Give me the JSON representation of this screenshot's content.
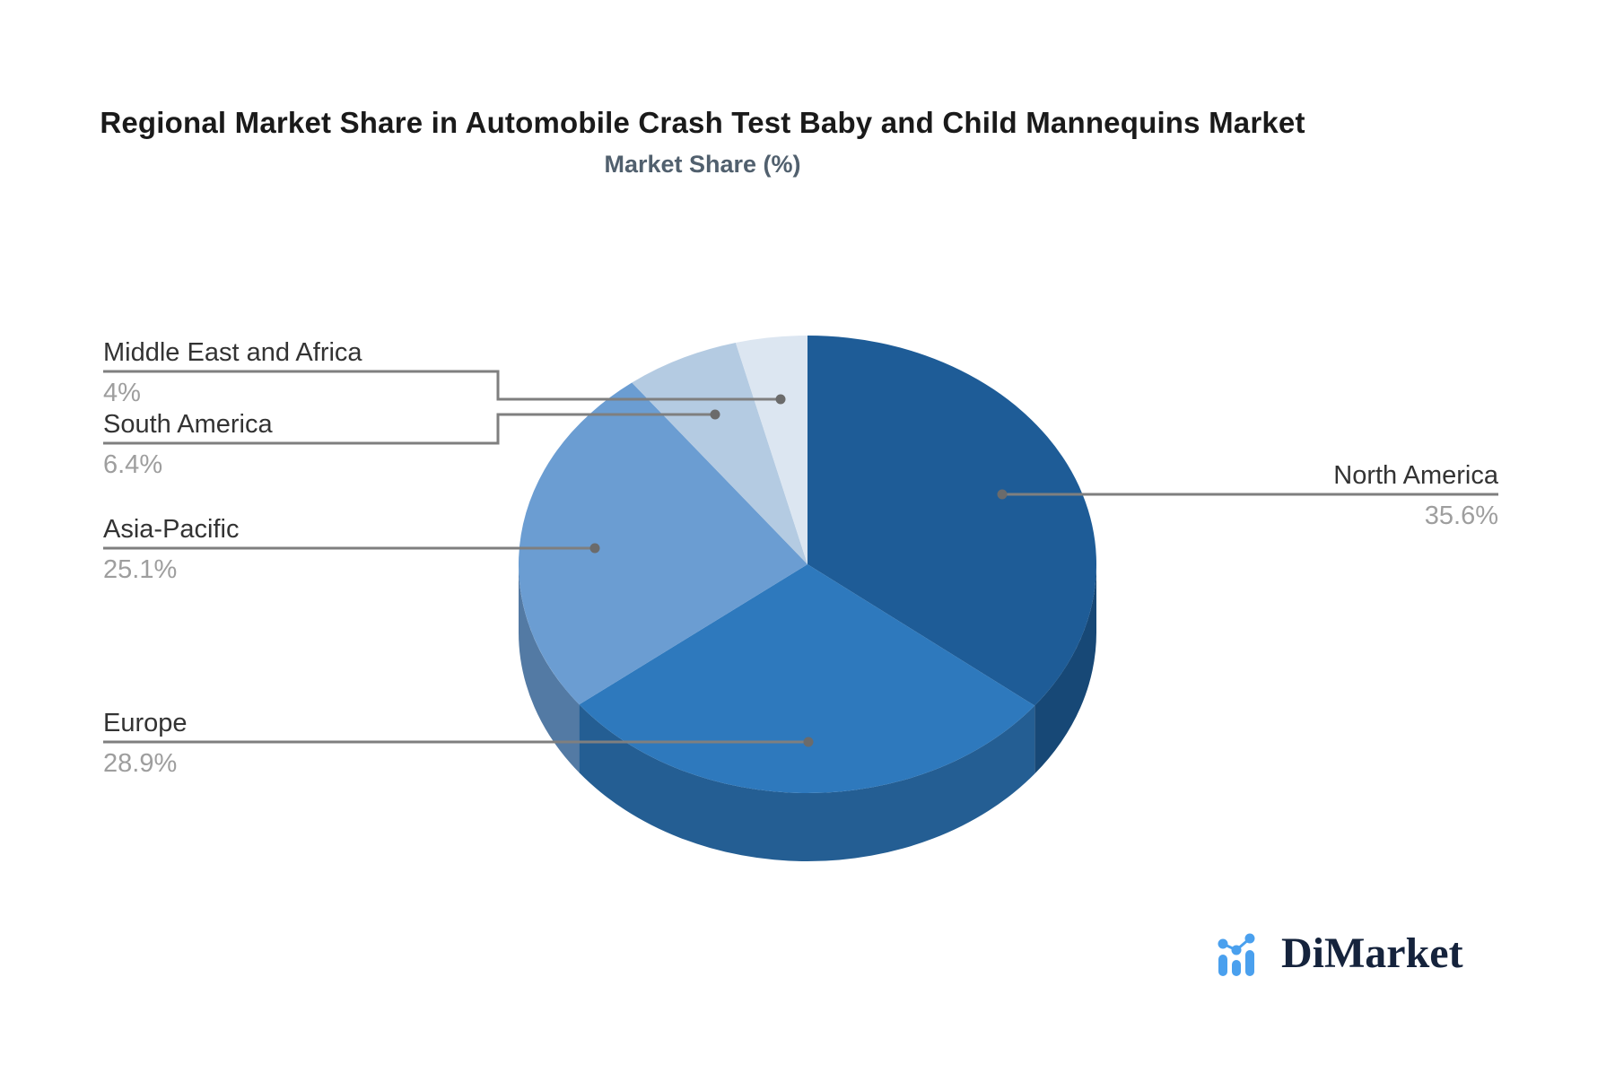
{
  "title": "Regional Market Share in Automobile Crash Test Baby and Child Mannequins Market",
  "subtitle": "Market Share (%)",
  "chart_data": {
    "type": "pie",
    "style": "3d",
    "title": "Regional Market Share in Automobile Crash Test Baby and Child Mannequins Market",
    "subtitle": "Market Share (%)",
    "start_angle_deg": 0,
    "direction": "clockwise",
    "legend_position": "callout-labels",
    "slices": [
      {
        "label": "North America",
        "value": 35.6,
        "display": "35.6%",
        "color": "#1e5c97"
      },
      {
        "label": "Europe",
        "value": 28.9,
        "display": "28.9%",
        "color": "#2e79bd"
      },
      {
        "label": "Asia-Pacific",
        "value": 25.1,
        "display": "25.1%",
        "color": "#6b9dd2"
      },
      {
        "label": "South America",
        "value": 6.4,
        "display": "6.4%",
        "color": "#b4cbe2"
      },
      {
        "label": "Middle East and Africa",
        "value": 4,
        "display": "4%",
        "color": "#dce6f1"
      }
    ],
    "callout_line_color": "#7f7f7f",
    "label_text_color": "#333333",
    "value_text_color": "#9e9e9e"
  },
  "branding": {
    "logo_text": "DiMarket",
    "logo_icon": "bar-line-chart-icon",
    "logo_color": "#4aa0ee"
  }
}
